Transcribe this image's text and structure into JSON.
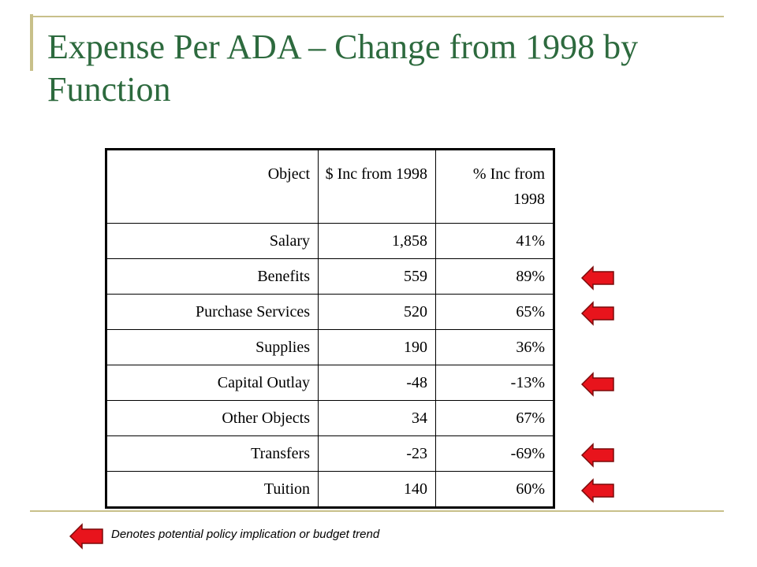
{
  "title": "Expense Per ADA – Change from 1998 by Function",
  "colors": {
    "title": "#2d6a3e",
    "arrow_fill": "#e8141c",
    "frame": "#c8c08a"
  },
  "table": {
    "headers": [
      "Object",
      "$ Inc from 1998",
      "% Inc from 1998"
    ],
    "rows": [
      {
        "object": "Salary",
        "dollar_inc": "1,858",
        "pct_inc": "41%",
        "flagged": false
      },
      {
        "object": "Benefits",
        "dollar_inc": "559",
        "pct_inc": "89%",
        "flagged": true
      },
      {
        "object": "Purchase Services",
        "dollar_inc": "520",
        "pct_inc": "65%",
        "flagged": true
      },
      {
        "object": "Supplies",
        "dollar_inc": "190",
        "pct_inc": "36%",
        "flagged": false
      },
      {
        "object": "Capital Outlay",
        "dollar_inc": "-48",
        "pct_inc": "-13%",
        "flagged": true
      },
      {
        "object": "Other Objects",
        "dollar_inc": "34",
        "pct_inc": "67%",
        "flagged": false
      },
      {
        "object": "Transfers",
        "dollar_inc": "-23",
        "pct_inc": "-69%",
        "flagged": true
      },
      {
        "object": "Tuition",
        "dollar_inc": "140",
        "pct_inc": "60%",
        "flagged": true
      }
    ]
  },
  "legend": {
    "icon": "red-left-arrow-icon",
    "text": "Denotes potential policy implication or budget trend"
  }
}
